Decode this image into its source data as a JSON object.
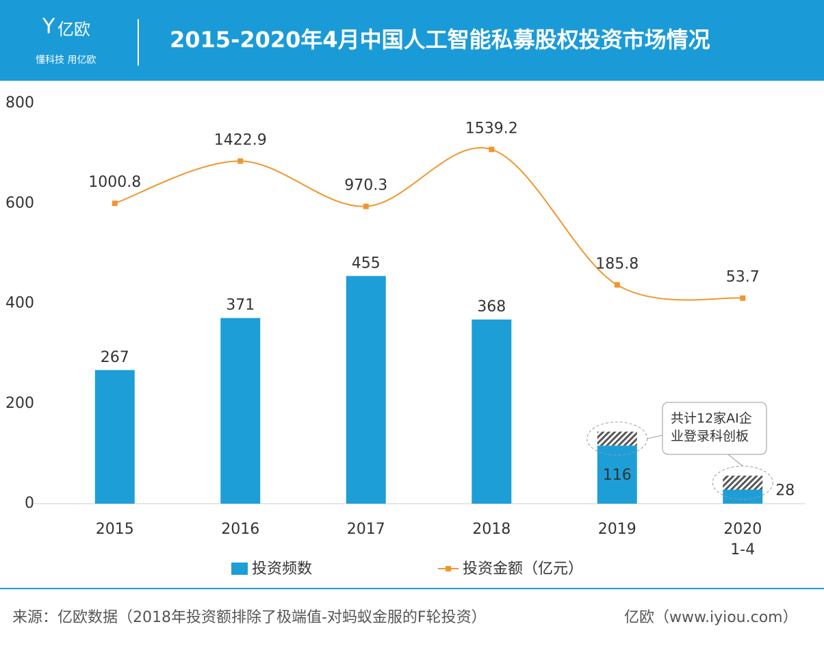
{
  "header": {
    "brand": "亿欧",
    "slogan": "懂科技 用亿欧"
  },
  "chart_data": {
    "type": "bar_line",
    "title": "2015-2020年4月中国人工智能私募股权投资市场情况",
    "categories": [
      "2015",
      "2016",
      "2017",
      "2018",
      "2019",
      "2020\n1-4"
    ],
    "series": [
      {
        "name": "投资频数",
        "color": "#1e9ed6",
        "values": [
          267,
          371,
          455,
          368,
          116,
          28
        ],
        "hatched_values": [
          null,
          null,
          null,
          null,
          28,
          28
        ]
      },
      {
        "name": "投资金额（亿元）",
        "color": "#f0962e",
        "axis": "y2",
        "values": [
          1000.8,
          1422.9,
          970.3,
          1539.2,
          185.8,
          53.7
        ]
      }
    ],
    "ylim": [
      0,
      800
    ],
    "yticks": [
      0,
      200,
      400,
      600,
      800
    ],
    "y2lim": [
      -2000,
      2000
    ],
    "annotation": [
      "共计12家AI企",
      "业登录科创板"
    ]
  },
  "footer": {
    "source": "来源：亿欧数据（2018年投资额排除了极端值-对蚂蚁金服的F轮投资）",
    "site": "亿欧（www.iyiou.com）"
  }
}
